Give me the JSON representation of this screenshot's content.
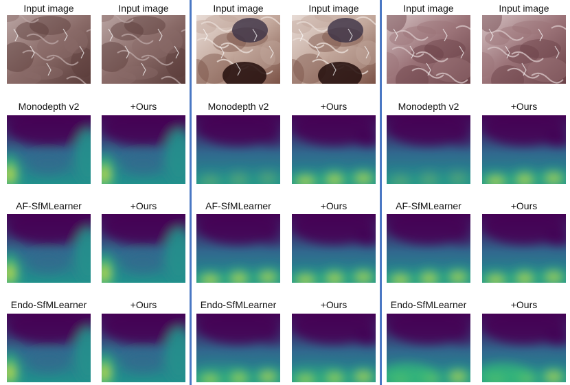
{
  "figure": {
    "row_labels": [
      [
        "Input image",
        "Input image"
      ],
      [
        "Monodepth v2",
        "+Ours"
      ],
      [
        "AF-SfMLearner",
        "+Ours"
      ],
      [
        "Endo-SfMLearner",
        "+Ours"
      ]
    ],
    "groups": [
      {
        "input_palette": [
          "#5a3c3a",
          "#8a6b68",
          "#b9a4a2",
          "#2f2020"
        ]
      },
      {
        "input_palette": [
          "#7b5246",
          "#c2a79b",
          "#e8dcd6",
          "#2a1412"
        ]
      },
      {
        "input_palette": [
          "#6a4147",
          "#9b7378",
          "#d6c3c4",
          "#3a2428"
        ]
      }
    ],
    "colors": {
      "divider": "#4a78c4",
      "viridis_dark": "#440154",
      "viridis_mid": "#31688e",
      "viridis_teal": "#21918c",
      "viridis_green": "#35b779",
      "viridis_yellow": "#fde725"
    }
  }
}
